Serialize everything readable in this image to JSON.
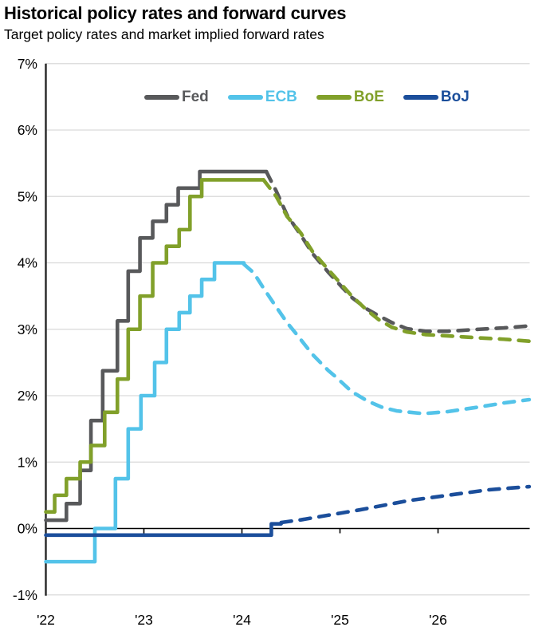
{
  "header": {
    "title": "Historical policy rates and forward curves",
    "subtitle": "Target policy rates and market implied forward rates"
  },
  "colors": {
    "grid": "#d9d9d9",
    "axis_spine": "#262626",
    "zero_line": "#000000",
    "text": "#000000"
  },
  "chart_data": {
    "type": "line",
    "title": "Historical policy rates and forward curves",
    "subtitle": "Target policy rates and market implied forward rates",
    "xlabel": "",
    "ylabel": "",
    "grid": "horizontal",
    "legend_position": "top-center",
    "x_range": [
      2022,
      2026.95
    ],
    "y_range": [
      -1,
      7
    ],
    "y_ticks": [
      {
        "label": "7%",
        "value": 7
      },
      {
        "label": "6%",
        "value": 6
      },
      {
        "label": "5%",
        "value": 5
      },
      {
        "label": "4%",
        "value": 4
      },
      {
        "label": "3%",
        "value": 3
      },
      {
        "label": "2%",
        "value": 2
      },
      {
        "label": "1%",
        "value": 1
      },
      {
        "label": "0%",
        "value": 0
      },
      {
        "label": "-1%",
        "value": -1
      }
    ],
    "x_ticks": [
      {
        "label": "'22",
        "value": 2022
      },
      {
        "label": "'23",
        "value": 2023
      },
      {
        "label": "'24",
        "value": 2024
      },
      {
        "label": "'25",
        "value": 2025
      },
      {
        "label": "'26",
        "value": 2026
      }
    ],
    "series": [
      {
        "name": "Fed",
        "color": "#58595b",
        "historical_style": "solid",
        "forward_style": "dashed",
        "historical_steps": [
          [
            2022.0,
            0.125
          ],
          [
            2022.21,
            0.375
          ],
          [
            2022.35,
            0.875
          ],
          [
            2022.46,
            1.625
          ],
          [
            2022.58,
            2.375
          ],
          [
            2022.73,
            3.125
          ],
          [
            2022.84,
            3.875
          ],
          [
            2022.96,
            4.375
          ],
          [
            2023.09,
            4.625
          ],
          [
            2023.23,
            4.875
          ],
          [
            2023.35,
            5.125
          ],
          [
            2023.57,
            5.375
          ]
        ],
        "historical_end": 2024.25,
        "forward": [
          [
            2024.25,
            5.37
          ],
          [
            2024.35,
            5.08
          ],
          [
            2024.46,
            4.72
          ],
          [
            2024.6,
            4.42
          ],
          [
            2024.72,
            4.14
          ],
          [
            2024.88,
            3.86
          ],
          [
            2025.03,
            3.62
          ],
          [
            2025.12,
            3.48
          ],
          [
            2025.28,
            3.3
          ],
          [
            2025.4,
            3.2
          ],
          [
            2025.53,
            3.1
          ],
          [
            2025.68,
            3.01
          ],
          [
            2025.87,
            2.97
          ],
          [
            2026.1,
            2.97
          ],
          [
            2026.42,
            3.0
          ],
          [
            2026.67,
            3.02
          ],
          [
            2026.93,
            3.05
          ]
        ]
      },
      {
        "name": "ECB",
        "color": "#53c3e9",
        "historical_style": "solid",
        "forward_style": "dashed",
        "historical_steps": [
          [
            2022.0,
            -0.5
          ],
          [
            2022.5,
            0.0
          ],
          [
            2022.71,
            0.75
          ],
          [
            2022.84,
            1.5
          ],
          [
            2022.97,
            2.0
          ],
          [
            2023.11,
            2.5
          ],
          [
            2023.23,
            3.0
          ],
          [
            2023.36,
            3.25
          ],
          [
            2023.47,
            3.5
          ],
          [
            2023.59,
            3.75
          ],
          [
            2023.72,
            4.0
          ]
        ],
        "historical_end": 2024.02,
        "forward": [
          [
            2024.02,
            3.98
          ],
          [
            2024.12,
            3.85
          ],
          [
            2024.22,
            3.62
          ],
          [
            2024.32,
            3.4
          ],
          [
            2024.46,
            3.1
          ],
          [
            2024.56,
            2.92
          ],
          [
            2024.72,
            2.62
          ],
          [
            2024.88,
            2.38
          ],
          [
            2024.96,
            2.28
          ],
          [
            2025.12,
            2.06
          ],
          [
            2025.28,
            1.92
          ],
          [
            2025.42,
            1.83
          ],
          [
            2025.58,
            1.77
          ],
          [
            2025.85,
            1.73
          ],
          [
            2026.1,
            1.76
          ],
          [
            2026.42,
            1.83
          ],
          [
            2026.67,
            1.89
          ],
          [
            2026.93,
            1.94
          ]
        ]
      },
      {
        "name": "BoE",
        "color": "#81a02a",
        "historical_style": "solid",
        "forward_style": "dashed",
        "historical_steps": [
          [
            2022.0,
            0.25
          ],
          [
            2022.09,
            0.5
          ],
          [
            2022.21,
            0.75
          ],
          [
            2022.35,
            1.0
          ],
          [
            2022.46,
            1.25
          ],
          [
            2022.6,
            1.75
          ],
          [
            2022.73,
            2.25
          ],
          [
            2022.84,
            3.0
          ],
          [
            2022.96,
            3.5
          ],
          [
            2023.09,
            4.0
          ],
          [
            2023.23,
            4.25
          ],
          [
            2023.36,
            4.5
          ],
          [
            2023.47,
            5.0
          ],
          [
            2023.59,
            5.25
          ]
        ],
        "historical_end": 2024.22,
        "forward": [
          [
            2024.22,
            5.25
          ],
          [
            2024.35,
            5.0
          ],
          [
            2024.46,
            4.7
          ],
          [
            2024.6,
            4.45
          ],
          [
            2024.72,
            4.17
          ],
          [
            2024.88,
            3.9
          ],
          [
            2025.03,
            3.65
          ],
          [
            2025.12,
            3.5
          ],
          [
            2025.28,
            3.28
          ],
          [
            2025.4,
            3.14
          ],
          [
            2025.53,
            3.03
          ],
          [
            2025.68,
            2.96
          ],
          [
            2025.87,
            2.92
          ],
          [
            2026.1,
            2.9
          ],
          [
            2026.42,
            2.87
          ],
          [
            2026.67,
            2.85
          ],
          [
            2026.93,
            2.82
          ]
        ]
      },
      {
        "name": "BoJ",
        "color": "#1b4e9b",
        "historical_style": "solid",
        "forward_style": "dashed",
        "historical_steps": [
          [
            2022.0,
            -0.1
          ],
          [
            2024.3,
            0.07
          ]
        ],
        "historical_end": 2024.4,
        "forward": [
          [
            2024.4,
            0.09
          ],
          [
            2024.6,
            0.13
          ],
          [
            2024.8,
            0.18
          ],
          [
            2025.0,
            0.23
          ],
          [
            2025.2,
            0.28
          ],
          [
            2025.45,
            0.35
          ],
          [
            2025.7,
            0.42
          ],
          [
            2026.0,
            0.48
          ],
          [
            2026.25,
            0.53
          ],
          [
            2026.5,
            0.58
          ],
          [
            2026.75,
            0.61
          ],
          [
            2026.93,
            0.63
          ]
        ]
      }
    ]
  }
}
